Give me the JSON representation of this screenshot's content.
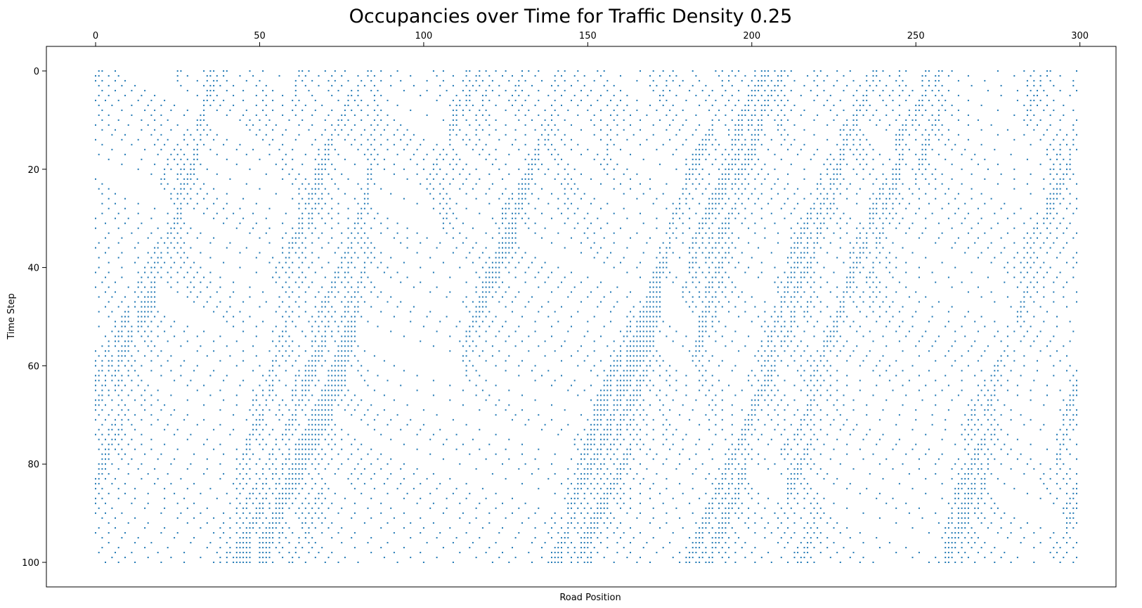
{
  "chart_data": {
    "type": "scatter",
    "title": "Occupancies over Time for Traffic Density 0.25",
    "xlabel": "Road Position",
    "ylabel": "Time Step",
    "xlim": [
      -15,
      311
    ],
    "ylim": [
      105,
      -5
    ],
    "xaxis_position": "top",
    "yaxis_inverted": true,
    "xticks": [
      "0",
      "50",
      "100",
      "150",
      "200",
      "250",
      "300"
    ],
    "yticks": [
      "0",
      "20",
      "40",
      "60",
      "80",
      "100"
    ],
    "grid": false,
    "legend": "none",
    "marker_color": "#1f77b4",
    "road_length": 300,
    "time_steps": 101,
    "density": 0.25,
    "points_description": "Each point marks an occupied road cell at a time step; cars drift right by ~5 cells per step producing diagonal streaks, with dense jam bands drifting slowly leftward. Points are generated procedurally from a traffic-flow rule."
  }
}
